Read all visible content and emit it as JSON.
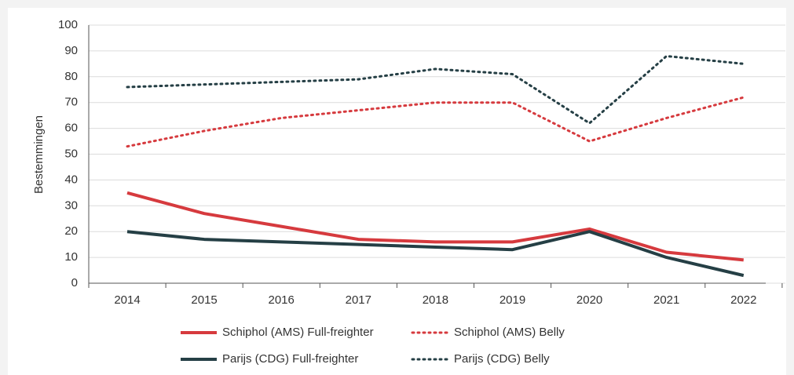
{
  "chart_data": {
    "type": "line",
    "y_label": "Bestemmingen",
    "categories": [
      "2014",
      "2015",
      "2016",
      "2017",
      "2018",
      "2019",
      "2020",
      "2021",
      "2022"
    ],
    "ylim": [
      0,
      100
    ],
    "yticks": [
      0,
      10,
      20,
      30,
      40,
      50,
      60,
      70,
      80,
      90,
      100
    ],
    "grid": true,
    "series": [
      {
        "name": "Schiphol (AMS) Full-freighter",
        "color": "#d63a3e",
        "style": "solid",
        "values": [
          35,
          27,
          22,
          17,
          16,
          16,
          21,
          12,
          9
        ]
      },
      {
        "name": "Schiphol (AMS) Belly",
        "color": "#d63a3e",
        "style": "dotted",
        "values": [
          53,
          59,
          64,
          67,
          70,
          70,
          55,
          64,
          72
        ]
      },
      {
        "name": "Parijs (CDG) Full-freighter",
        "color": "#253f45",
        "style": "solid",
        "values": [
          20,
          17,
          16,
          15,
          14,
          13,
          20,
          10,
          3
        ]
      },
      {
        "name": "Parijs (CDG) Belly",
        "color": "#253f45",
        "style": "dotted",
        "values": [
          76,
          77,
          78,
          79,
          83,
          81,
          62,
          88,
          85
        ]
      }
    ]
  }
}
